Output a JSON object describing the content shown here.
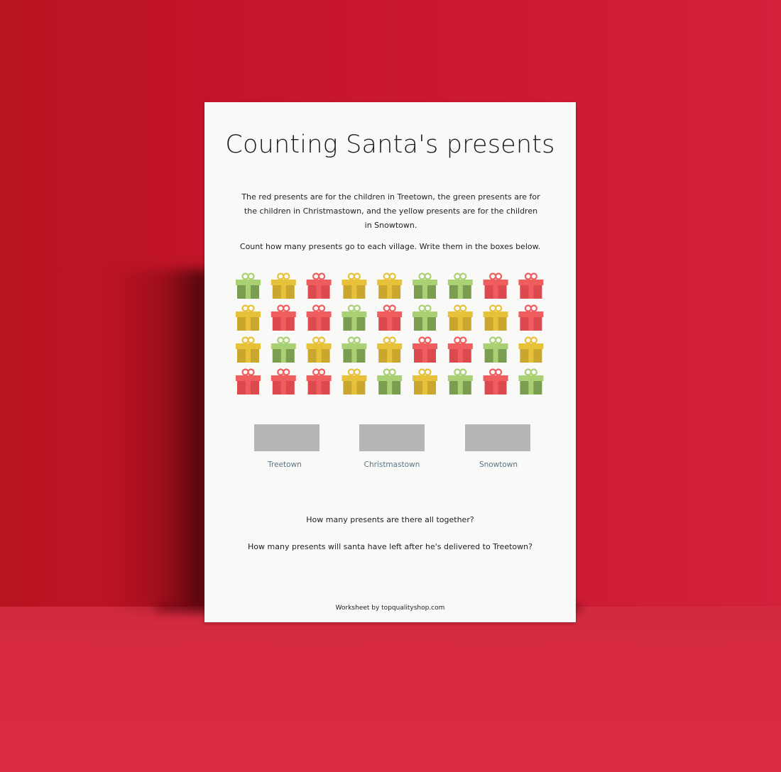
{
  "worksheet": {
    "title": "Counting Santa's presents",
    "intro": "The red presents are for the children in Treetown, the green presents are for the children in Christmastown, and the yellow presents are for the children in Snowtown.",
    "instruction": "Count how many presents go to each village. Write them in the boxes below.",
    "presents": [
      [
        "green",
        "yellow",
        "red",
        "yellow",
        "yellow",
        "green",
        "green",
        "red",
        "red"
      ],
      [
        "yellow",
        "red",
        "red",
        "green",
        "red",
        "green",
        "yellow",
        "yellow",
        "red"
      ],
      [
        "yellow",
        "green",
        "yellow",
        "green",
        "yellow",
        "red",
        "red",
        "green",
        "yellow"
      ],
      [
        "red",
        "red",
        "red",
        "yellow",
        "green",
        "yellow",
        "green",
        "red",
        "green"
      ]
    ],
    "villages": [
      {
        "label": "Treetown",
        "answer": ""
      },
      {
        "label": "Christmastown",
        "answer": ""
      },
      {
        "label": "Snowtown",
        "answer": ""
      }
    ],
    "question_total": "How many presents are there all together?",
    "question_left": "How many presents will santa have left after he's delivered to Treetown?",
    "footer": "Worksheet by topqualityshop.com"
  },
  "colors": {
    "red": {
      "light": "#ef5d5f",
      "dark": "#dc4a50"
    },
    "green": {
      "light": "#a9d073",
      "dark": "#7b9d50"
    },
    "yellow": {
      "light": "#e8c13a",
      "dark": "#c9a72f"
    },
    "wall": "#c5152b",
    "floor": "#d9293f",
    "answer_box": "#b6b6b6",
    "village_label": "#5c7585"
  }
}
